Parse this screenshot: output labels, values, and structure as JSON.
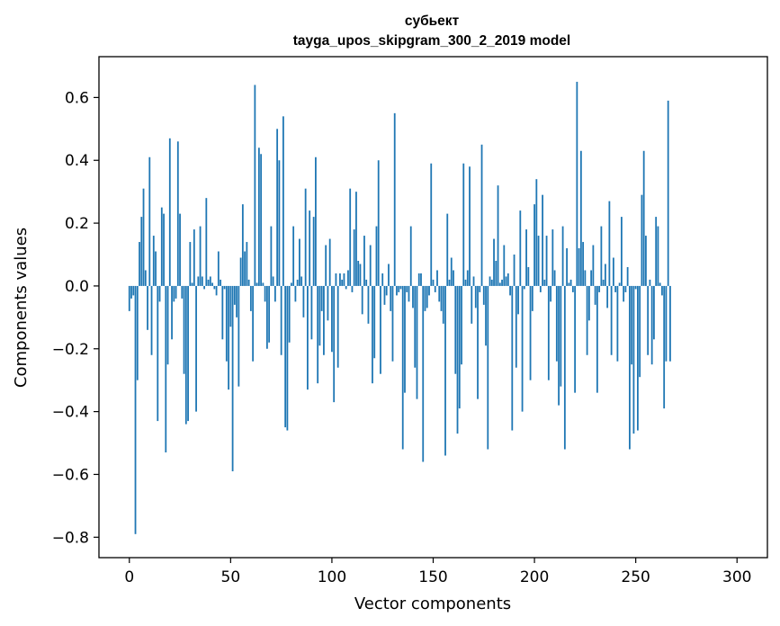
{
  "chart_data": {
    "type": "bar",
    "title_line1": "субьект",
    "title_line2": "tayga_upos_skipgram_300_2_2019 model",
    "xlabel": "Vector components",
    "ylabel": "Components values",
    "xlim": [
      -15,
      315
    ],
    "ylim": [
      -0.865,
      0.73
    ],
    "xticks": [
      0,
      50,
      100,
      150,
      200,
      250,
      300
    ],
    "xtick_labels": [
      "0",
      "50",
      "100",
      "150",
      "200",
      "250",
      "300"
    ],
    "yticks": [
      -0.8,
      -0.6,
      -0.4,
      -0.2,
      0.0,
      0.2,
      0.4,
      0.6
    ],
    "ytick_labels": [
      "−0.8",
      "−0.6",
      "−0.4",
      "−0.2",
      "0.0",
      "0.2",
      "0.4",
      "0.6"
    ],
    "bar_color": "#1f77b4",
    "values": [
      -0.08,
      -0.04,
      -0.03,
      -0.79,
      -0.3,
      0.14,
      0.22,
      0.31,
      0.05,
      -0.14,
      0.41,
      -0.22,
      0.16,
      0.11,
      -0.43,
      -0.05,
      0.25,
      0.23,
      -0.53,
      -0.25,
      0.47,
      -0.17,
      -0.05,
      -0.04,
      0.46,
      0.23,
      -0.04,
      -0.28,
      -0.44,
      -0.43,
      0.14,
      0.01,
      0.18,
      -0.4,
      0.03,
      0.19,
      0.03,
      -0.01,
      0.28,
      0.02,
      0.03,
      0.01,
      -0.01,
      -0.03,
      0.11,
      0.02,
      -0.17,
      -0.01,
      -0.24,
      -0.33,
      -0.13,
      -0.59,
      -0.06,
      -0.1,
      -0.32,
      0.09,
      0.26,
      0.11,
      0.14,
      0.02,
      -0.08,
      -0.24,
      0.64,
      0.01,
      0.44,
      0.42,
      0.01,
      -0.05,
      -0.2,
      -0.18,
      0.19,
      0.03,
      -0.05,
      0.5,
      0.4,
      -0.22,
      0.54,
      -0.45,
      -0.46,
      -0.18,
      0.01,
      0.19,
      -0.05,
      0.02,
      0.15,
      0.03,
      -0.1,
      0.31,
      -0.33,
      0.24,
      -0.17,
      0.22,
      0.41,
      -0.31,
      -0.19,
      -0.08,
      -0.22,
      0.13,
      -0.11,
      0.15,
      -0.21,
      -0.37,
      0.04,
      -0.26,
      0.04,
      0.02,
      0.04,
      -0.01,
      0.05,
      0.31,
      -0.02,
      0.18,
      0.3,
      0.08,
      0.07,
      -0.09,
      0.16,
      0.02,
      -0.12,
      0.13,
      -0.31,
      -0.23,
      0.19,
      0.4,
      -0.28,
      0.04,
      -0.06,
      -0.03,
      0.07,
      -0.08,
      -0.24,
      0.55,
      -0.03,
      -0.02,
      -0.01,
      -0.52,
      -0.34,
      -0.02,
      -0.05,
      0.19,
      -0.07,
      -0.26,
      -0.36,
      0.04,
      0.04,
      -0.56,
      -0.08,
      -0.07,
      -0.03,
      0.39,
      0.02,
      -0.02,
      0.05,
      -0.05,
      -0.08,
      -0.12,
      -0.54,
      0.23,
      0.02,
      0.09,
      0.05,
      -0.28,
      -0.47,
      -0.39,
      -0.25,
      0.39,
      0.02,
      0.05,
      0.38,
      -0.12,
      0.03,
      -0.07,
      -0.36,
      -0.02,
      0.45,
      -0.06,
      -0.19,
      -0.52,
      0.03,
      0.02,
      0.15,
      0.08,
      0.32,
      0.01,
      0.02,
      0.13,
      0.03,
      0.04,
      -0.03,
      -0.46,
      0.1,
      -0.26,
      -0.09,
      0.24,
      -0.4,
      -0.01,
      0.18,
      0.06,
      -0.3,
      -0.08,
      0.26,
      0.34,
      0.16,
      -0.02,
      0.29,
      0.02,
      0.16,
      -0.3,
      -0.05,
      0.18,
      0.05,
      -0.24,
      -0.38,
      -0.32,
      0.19,
      -0.52,
      0.12,
      0.01,
      0.02,
      -0.02,
      -0.34,
      0.65,
      0.12,
      0.43,
      0.14,
      0.05,
      -0.22,
      -0.11,
      0.05,
      0.13,
      -0.06,
      -0.34,
      -0.02,
      0.19,
      0.02,
      0.07,
      -0.07,
      0.27,
      -0.22,
      0.09,
      -0.02,
      -0.24,
      0.01,
      0.22,
      -0.05,
      -0.02,
      0.06,
      -0.52,
      -0.25,
      -0.47,
      -0.01,
      -0.46,
      -0.29,
      0.29,
      0.43,
      0.16,
      -0.22,
      0.02,
      -0.25,
      -0.17,
      0.22,
      0.19,
      0.01,
      -0.03,
      -0.39,
      -0.24,
      0.59,
      -0.24
    ]
  }
}
